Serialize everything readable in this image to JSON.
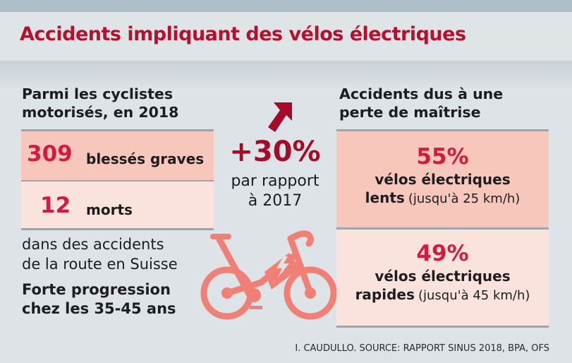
{
  "title": "Accidents impliquant des vélos électriques",
  "left": {
    "heading_line1": "Parmi les cyclistes",
    "heading_line2": "motorisés, en 2018",
    "stat1": {
      "value": "309",
      "label": "blessés graves"
    },
    "stat2": {
      "value": "12",
      "label": "morts"
    },
    "note_line1": "dans des accidents",
    "note_line2": "de la route en Suisse",
    "bold_line1": "Forte progression",
    "bold_line2": "chez les 35-45 ans"
  },
  "middle": {
    "value": "+30%",
    "line1": "par rapport",
    "line2": "à 2017",
    "icon": "arrow-up-right-icon",
    "bike_icon": "electric-bike-icon"
  },
  "right": {
    "heading_line1": "Accidents dus à une",
    "heading_line2": "perte de maîtrise",
    "stat1": {
      "value": "55%",
      "line1": "vélos électriques",
      "bold": "lents",
      "note": "(jusqu'à 25 km/h)"
    },
    "stat2": {
      "value": "49%",
      "line1": "vélos électriques",
      "bold": "rapides",
      "note": "(jusqu'à 45 km/h)"
    }
  },
  "credit": "I. CAUDULLO. SOURCE: RAPPORT SINUS 2018, BPA, OFS",
  "colors": {
    "title": "#b5102f",
    "number": "#d41a3d",
    "box_dark": "#f7c7bb",
    "box_light": "#fae3dc",
    "bike": "#f08075"
  }
}
